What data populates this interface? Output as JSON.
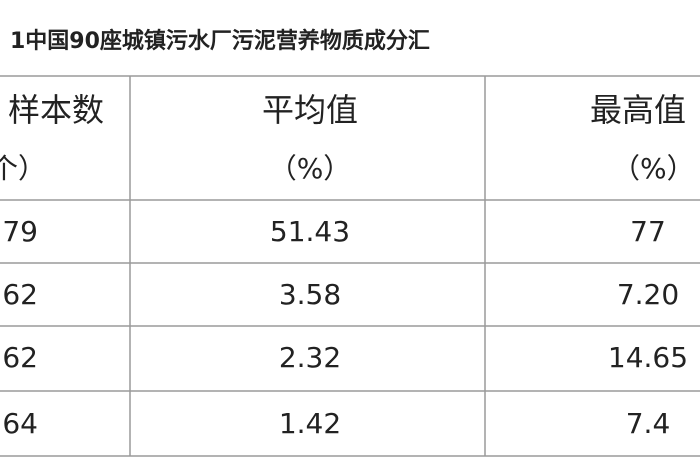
{
  "title": "1中国90座城镇污水厂污泥营养物质成分汇",
  "table": {
    "header": [
      [
        "样本数",
        "（个）"
      ],
      [
        "平均值",
        "（%）"
      ],
      [
        "最高值",
        "（%）"
      ]
    ],
    "rows": [
      [
        "79",
        "51.43",
        "77"
      ],
      [
        "62",
        "3.58",
        "7.20"
      ],
      [
        "62",
        "2.32",
        "14.65"
      ],
      [
        "64",
        "1.42",
        "7.4"
      ]
    ]
  }
}
